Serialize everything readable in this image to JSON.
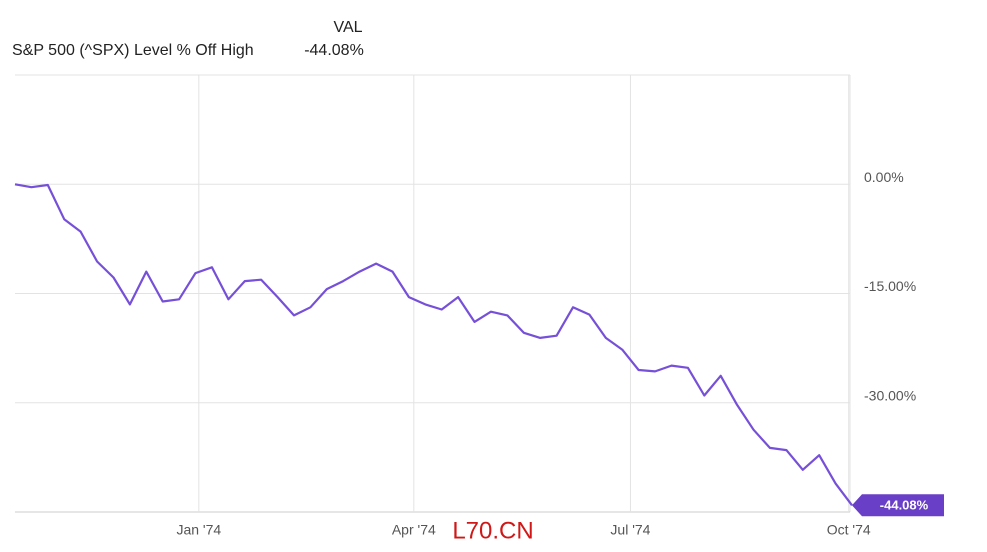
{
  "chart_data": {
    "type": "line",
    "legend_header": "VAL",
    "latest_label": "-44.08%",
    "watermark": "L70.CN",
    "series": [
      {
        "name": "S&P 500 (^SPX) Level % Off High",
        "color": "#7650d8",
        "values": [
          0,
          -0.4,
          -0.1,
          -4.8,
          -6.5,
          -10.6,
          -12.8,
          -16.5,
          -12.0,
          -16.1,
          -15.8,
          -12.2,
          -11.4,
          -15.8,
          -13.3,
          -13.1,
          -15.5,
          -18.0,
          -16.9,
          -14.4,
          -13.3,
          -12.0,
          -10.9,
          -12.0,
          -15.5,
          -16.5,
          -17.2,
          -15.5,
          -18.9,
          -17.5,
          -18.0,
          -20.4,
          -21.1,
          -20.8,
          -16.9,
          -17.9,
          -21.1,
          -22.7,
          -25.5,
          -25.7,
          -24.9,
          -25.2,
          -29.0,
          -26.3,
          -30.3,
          -33.7,
          -36.2,
          -36.5,
          -39.2,
          -37.2,
          -41.1,
          -44.08
        ]
      }
    ],
    "xlim": [
      0,
      51
    ],
    "xticks": [
      {
        "value": 11.2,
        "label": "Jan '74"
      },
      {
        "value": 24.3,
        "label": "Apr '74"
      },
      {
        "value": 37.5,
        "label": "Jul '74"
      },
      {
        "value": 50.8,
        "label": "Oct '74"
      }
    ],
    "ylim": [
      -45,
      15
    ],
    "yticks": [
      {
        "value": 0,
        "label": "0.00%"
      },
      {
        "value": -15,
        "label": "-15.00%"
      },
      {
        "value": -30,
        "label": "-30.00%"
      }
    ],
    "grid": true
  }
}
